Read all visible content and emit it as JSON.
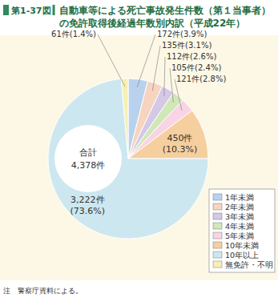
{
  "chart_data": {
    "type": "pie",
    "figure_label": "第1-37図",
    "title": "自動車等による死亡事故発生件数（第１当事者）の免許取得後経過年数別内訳（平成22年）",
    "categories": [
      "1年未満",
      "2年未満",
      "3年未満",
      "4年未満",
      "5年未満",
      "10年未満",
      "10年以上",
      "無免許・不明"
    ],
    "values": [
      172,
      135,
      112,
      105,
      121,
      450,
      3222,
      61
    ],
    "value_labels": [
      "172件(3.9%)",
      "135件(3.1%)",
      "112件(2.6%)",
      "105件(2.4%)",
      "121件(2.8%)",
      "450件(10.3%)",
      "3,222件(73.6%)",
      "61件(1.4%)"
    ],
    "colors": [
      "#b8d2ee",
      "#f6d4bf",
      "#d5c7e6",
      "#d2e7b8",
      "#f8d4e4",
      "#f6cf9f",
      "#cde7f0",
      "#f6f0b4"
    ],
    "data_labels": true,
    "legend": "bottom-right",
    "total": {
      "label": "合計",
      "value": 4378,
      "value_label": "4,378件"
    },
    "note": "注　警察庁資料による。"
  }
}
